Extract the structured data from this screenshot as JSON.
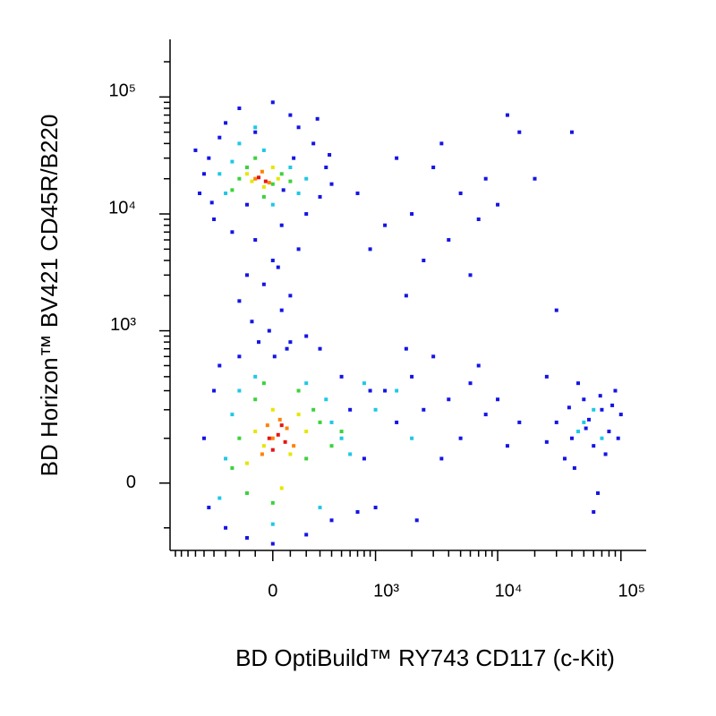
{
  "chart_data": {
    "type": "scatter",
    "x_label": "BD OptiBuild™ RY743 CD117 (c-Kit)",
    "y_label": "BD Horizon™ BV421 CD45R/B220",
    "xscale": {
      "type": "biexponential",
      "width": 300
    },
    "yscale": {
      "type": "biexponential",
      "width": 100
    },
    "xlim": [
      -1000,
      155000
    ],
    "ylim": [
      -175,
      300000
    ],
    "xticks": [
      0,
      {
        "value": 1000,
        "label": "10³"
      },
      {
        "value": 10000,
        "label": "10⁴"
      },
      {
        "value": 100000,
        "label": "10⁵"
      }
    ],
    "yticks": [
      0,
      {
        "value": 1000,
        "label": "10³"
      },
      {
        "value": 10000,
        "label": "10⁴"
      },
      {
        "value": 100000,
        "label": "10⁵"
      }
    ],
    "xminorticks": [
      -900,
      -800,
      -700,
      -600,
      -500,
      -400,
      -300,
      -200,
      -100,
      100,
      200,
      300,
      400,
      500,
      600,
      700,
      800,
      900,
      2000,
      3000,
      4000,
      5000,
      6000,
      7000,
      8000,
      9000,
      20000,
      30000,
      40000,
      50000,
      60000,
      70000,
      80000,
      90000
    ],
    "yminorticks": [
      -100,
      100,
      200,
      300,
      400,
      500,
      600,
      700,
      800,
      900,
      2000,
      3000,
      4000,
      5000,
      6000,
      7000,
      8000,
      9000,
      20000,
      30000,
      40000,
      50000,
      60000,
      70000,
      80000,
      90000,
      200000
    ],
    "series": [
      {
        "color": "#1414e6",
        "x": [
          -450,
          -300,
          -200,
          100,
          250,
          350,
          -550,
          -400,
          200,
          300,
          -350,
          0,
          150,
          -500,
          400,
          -250,
          50,
          -150,
          120,
          -600,
          280,
          -100,
          380,
          -420,
          60,
          -100,
          0,
          -50,
          50,
          -150,
          100,
          -20,
          80,
          -80,
          150,
          -200,
          30,
          -120,
          200,
          10,
          1500,
          3000,
          5000,
          8000,
          2000,
          4000,
          10000,
          2500,
          6000,
          1200,
          15000,
          40000,
          12000,
          20000,
          3500,
          700,
          900,
          1800,
          7000,
          30000,
          -500,
          -400,
          -300,
          600,
          800,
          -450,
          500,
          -200,
          300,
          0,
          200,
          -350,
          700,
          400,
          -150,
          900,
          100,
          1200,
          1500,
          2000,
          2500,
          3000,
          4000,
          5000,
          6000,
          8000,
          1000,
          3500,
          7000,
          10000,
          15000,
          1800,
          2200,
          12000,
          25000,
          30000,
          40000,
          50000,
          60000,
          70000,
          80000,
          90000,
          35000,
          45000,
          55000,
          65000,
          75000,
          85000,
          100000,
          42000,
          52000,
          68000,
          25000,
          95000,
          60000,
          38000
        ],
        "values": [
          30000,
          60000,
          80000,
          70000,
          40000,
          25000,
          15000,
          9000,
          10000,
          14000,
          45000,
          90000,
          55000,
          22000,
          18000,
          7000,
          8000,
          12000,
          30000,
          35000,
          65000,
          50000,
          32000,
          12500,
          16000,
          6000,
          4000,
          2500,
          1500,
          3000,
          2000,
          1000,
          700,
          800,
          5000,
          1800,
          3500,
          1200,
          900,
          600,
          30000,
          25000,
          15000,
          20000,
          10000,
          6000,
          12000,
          4000,
          3000,
          8000,
          50000,
          50000,
          70000,
          20000,
          40000,
          15000,
          5000,
          2000,
          9000,
          1500,
          100,
          300,
          -100,
          200,
          50,
          -50,
          400,
          600,
          700,
          -150,
          -120,
          500,
          -60,
          -80,
          -130,
          300,
          800,
          300,
          150,
          400,
          200,
          600,
          250,
          100,
          350,
          180,
          -50,
          50,
          500,
          250,
          150,
          700,
          -80,
          80,
          400,
          150,
          100,
          250,
          80,
          200,
          120,
          300,
          50,
          350,
          160,
          -20,
          60,
          220,
          180,
          30,
          130,
          270,
          90,
          100,
          -60,
          210
        ]
      },
      {
        "color": "#1ec8e6",
        "x": [
          -300,
          -50,
          100,
          -200,
          150,
          -350,
          0,
          -100,
          200,
          -250,
          -300,
          400,
          -200,
          300,
          -350,
          500,
          -100,
          200,
          0,
          600,
          -250,
          350,
          1000,
          1500,
          2000,
          800,
          50000,
          70000,
          60000,
          45000
        ],
        "values": [
          15000,
          35000,
          25000,
          40000,
          15000,
          22000,
          12000,
          55000,
          20000,
          28000,
          50,
          150,
          300,
          -50,
          -30,
          100,
          400,
          350,
          -90,
          60,
          180,
          250,
          200,
          300,
          100,
          350,
          150,
          100,
          200,
          120
        ]
      },
      {
        "color": "#3cd23c",
        "x": [
          -200,
          0,
          -100,
          50,
          -250,
          -150,
          100,
          -50,
          -200,
          200,
          -100,
          300,
          0,
          -250,
          150,
          400,
          -150,
          250,
          -50,
          500
        ],
        "values": [
          20000,
          18000,
          30000,
          22000,
          16000,
          25000,
          19000,
          14000,
          100,
          50,
          250,
          150,
          -40,
          30,
          300,
          80,
          -20,
          200,
          350,
          120
        ]
      },
      {
        "color": "#e6e600",
        "x": [
          -150,
          -50,
          0,
          -120,
          30,
          -100,
          100,
          0,
          200,
          -150,
          50,
          150,
          -50
        ],
        "values": [
          22000,
          17000,
          25000,
          19000,
          20000,
          120,
          60,
          200,
          120,
          40,
          -10,
          180,
          80
        ]
      },
      {
        "color": "#ff8200",
        "x": [
          -100,
          -60,
          -20,
          0,
          80,
          -60,
          120,
          40,
          -30
        ],
        "values": [
          20000,
          23000,
          18500,
          100,
          130,
          60,
          80,
          160,
          140
        ]
      },
      {
        "color": "#e61414",
        "x": [
          -80,
          -40,
          30,
          70,
          0,
          50,
          -20
        ],
        "values": [
          20500,
          19000,
          110,
          90,
          70,
          140,
          100
        ]
      }
    ]
  }
}
